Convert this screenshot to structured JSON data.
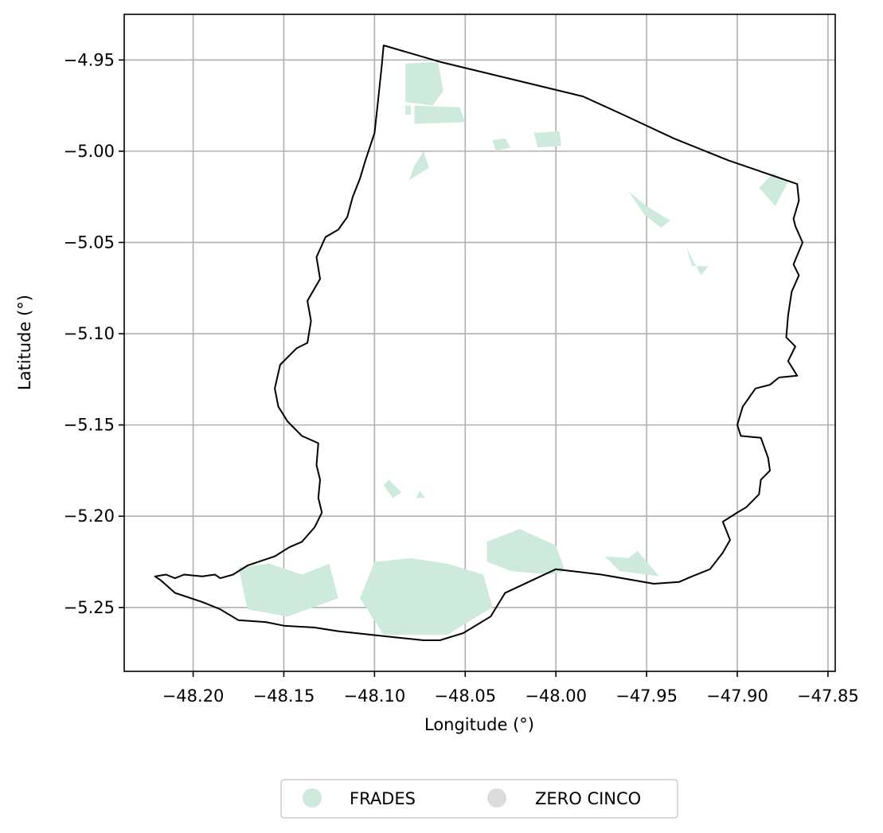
{
  "chart_data": {
    "type": "map",
    "xlabel": "Longitude (°)",
    "ylabel": "Latitude (°)",
    "xlim": [
      -48.238,
      -47.846
    ],
    "ylim": [
      -5.285,
      -4.925
    ],
    "xticks": [
      -48.2,
      -48.15,
      -48.1,
      -48.05,
      -48.0,
      -47.95,
      -47.9,
      -47.85
    ],
    "xtick_labels": [
      "−48.20",
      "−48.15",
      "−48.10",
      "−48.05",
      "−48.00",
      "−47.95",
      "−47.90",
      "−47.85"
    ],
    "yticks": [
      -4.95,
      -5.0,
      -5.05,
      -5.1,
      -5.15,
      -5.2,
      -5.25
    ],
    "ytick_labels": [
      "−4.95",
      "−5.00",
      "−5.05",
      "−5.10",
      "−5.15",
      "−5.20",
      "−5.25"
    ],
    "grid": true,
    "legend_position": "bottom-center",
    "legend": [
      {
        "label": "FRADES",
        "color": "#cdeadc"
      },
      {
        "label": "ZERO CINCO",
        "color": "#dcdcdc"
      }
    ],
    "boundary": [
      [
        -48.095,
        -4.942
      ],
      [
        -48.064,
        -4.951
      ],
      [
        -47.985,
        -4.97
      ],
      [
        -47.963,
        -4.98
      ],
      [
        -47.935,
        -4.993
      ],
      [
        -47.905,
        -5.005
      ],
      [
        -47.867,
        -5.018
      ],
      [
        -47.866,
        -5.027
      ],
      [
        -47.869,
        -5.037
      ],
      [
        -47.868,
        -5.041
      ],
      [
        -47.864,
        -5.05
      ],
      [
        -47.869,
        -5.062
      ],
      [
        -47.866,
        -5.068
      ],
      [
        -47.87,
        -5.077
      ],
      [
        -47.872,
        -5.09
      ],
      [
        -47.873,
        -5.102
      ],
      [
        -47.868,
        -5.107
      ],
      [
        -47.872,
        -5.115
      ],
      [
        -47.867,
        -5.123
      ],
      [
        -47.877,
        -5.124
      ],
      [
        -47.882,
        -5.128
      ],
      [
        -47.89,
        -5.13
      ],
      [
        -47.897,
        -5.14
      ],
      [
        -47.9,
        -5.15
      ],
      [
        -47.898,
        -5.156
      ],
      [
        -47.887,
        -5.157
      ],
      [
        -47.883,
        -5.168
      ],
      [
        -47.882,
        -5.175
      ],
      [
        -47.887,
        -5.18
      ],
      [
        -47.888,
        -5.188
      ],
      [
        -47.895,
        -5.195
      ],
      [
        -47.9,
        -5.198
      ],
      [
        -47.908,
        -5.203
      ],
      [
        -47.904,
        -5.213
      ],
      [
        -47.908,
        -5.22
      ],
      [
        -47.915,
        -5.229
      ],
      [
        -47.925,
        -5.233
      ],
      [
        -47.932,
        -5.236
      ],
      [
        -47.946,
        -5.237
      ],
      [
        -47.975,
        -5.232
      ],
      [
        -48.0,
        -5.229
      ],
      [
        -48.015,
        -5.236
      ],
      [
        -48.028,
        -5.242
      ],
      [
        -48.036,
        -5.255
      ],
      [
        -48.051,
        -5.264
      ],
      [
        -48.064,
        -5.268
      ],
      [
        -48.073,
        -5.268
      ],
      [
        -48.092,
        -5.266
      ],
      [
        -48.12,
        -5.263
      ],
      [
        -48.133,
        -5.261
      ],
      [
        -48.15,
        -5.26
      ],
      [
        -48.16,
        -5.258
      ],
      [
        -48.175,
        -5.257
      ],
      [
        -48.185,
        -5.251
      ],
      [
        -48.195,
        -5.247
      ],
      [
        -48.21,
        -5.242
      ],
      [
        -48.218,
        -5.235
      ],
      [
        -48.221,
        -5.233
      ],
      [
        -48.215,
        -5.232
      ],
      [
        -48.21,
        -5.234
      ],
      [
        -48.205,
        -5.232
      ],
      [
        -48.195,
        -5.233
      ],
      [
        -48.188,
        -5.232
      ],
      [
        -48.185,
        -5.234
      ],
      [
        -48.178,
        -5.232
      ],
      [
        -48.17,
        -5.227
      ],
      [
        -48.155,
        -5.222
      ],
      [
        -48.147,
        -5.217
      ],
      [
        -48.14,
        -5.214
      ],
      [
        -48.133,
        -5.206
      ],
      [
        -48.129,
        -5.198
      ],
      [
        -48.131,
        -5.19
      ],
      [
        -48.13,
        -5.18
      ],
      [
        -48.132,
        -5.172
      ],
      [
        -48.131,
        -5.16
      ],
      [
        -48.14,
        -5.156
      ],
      [
        -48.148,
        -5.148
      ],
      [
        -48.153,
        -5.14
      ],
      [
        -48.155,
        -5.13
      ],
      [
        -48.152,
        -5.117
      ],
      [
        -48.143,
        -5.108
      ],
      [
        -48.137,
        -5.105
      ],
      [
        -48.135,
        -5.093
      ],
      [
        -48.137,
        -5.082
      ],
      [
        -48.13,
        -5.07
      ],
      [
        -48.132,
        -5.058
      ],
      [
        -48.127,
        -5.047
      ],
      [
        -48.12,
        -5.043
      ],
      [
        -48.115,
        -5.036
      ],
      [
        -48.112,
        -5.025
      ],
      [
        -48.108,
        -5.015
      ],
      [
        -48.105,
        -5.005
      ],
      [
        -48.1,
        -4.99
      ],
      [
        -48.098,
        -4.972
      ],
      [
        -48.096,
        -4.953
      ],
      [
        -48.095,
        -4.942
      ]
    ],
    "frades_areas": [
      [
        [
          -48.083,
          -4.952
        ],
        [
          -48.065,
          -4.951
        ],
        [
          -48.062,
          -4.967
        ],
        [
          -48.068,
          -4.975
        ],
        [
          -48.083,
          -4.973
        ]
      ],
      [
        [
          -48.078,
          -4.975
        ],
        [
          -48.053,
          -4.976
        ],
        [
          -48.05,
          -4.984
        ],
        [
          -48.078,
          -4.985
        ]
      ],
      [
        [
          -48.083,
          -4.975
        ],
        [
          -48.08,
          -4.975
        ],
        [
          -48.08,
          -4.98
        ],
        [
          -48.083,
          -4.98
        ]
      ],
      [
        [
          -48.012,
          -4.99
        ],
        [
          -47.998,
          -4.989
        ],
        [
          -47.997,
          -4.997
        ],
        [
          -48.01,
          -4.998
        ]
      ],
      [
        [
          -48.028,
          -4.993
        ],
        [
          -48.025,
          -4.998
        ],
        [
          -48.033,
          -5.0
        ],
        [
          -48.035,
          -4.994
        ]
      ],
      [
        [
          -48.073,
          -5.0
        ],
        [
          -48.07,
          -5.009
        ],
        [
          -48.081,
          -5.016
        ],
        [
          -48.078,
          -5.008
        ]
      ],
      [
        [
          -47.88,
          -5.012
        ],
        [
          -47.872,
          -5.017
        ],
        [
          -47.879,
          -5.03
        ],
        [
          -47.888,
          -5.02
        ]
      ],
      [
        [
          -47.96,
          -5.022
        ],
        [
          -47.95,
          -5.03
        ],
        [
          -47.937,
          -5.038
        ],
        [
          -47.942,
          -5.042
        ],
        [
          -47.951,
          -5.035
        ]
      ],
      [
        [
          -47.928,
          -5.053
        ],
        [
          -47.925,
          -5.063
        ],
        [
          -47.916,
          -5.063
        ],
        [
          -47.92,
          -5.068
        ]
      ],
      [
        [
          -48.175,
          -5.228
        ],
        [
          -48.158,
          -5.226
        ],
        [
          -48.14,
          -5.232
        ],
        [
          -48.125,
          -5.226
        ],
        [
          -48.12,
          -5.245
        ],
        [
          -48.148,
          -5.255
        ],
        [
          -48.17,
          -5.251
        ]
      ],
      [
        [
          -48.108,
          -5.245
        ],
        [
          -48.1,
          -5.225
        ],
        [
          -48.08,
          -5.223
        ],
        [
          -48.06,
          -5.226
        ],
        [
          -48.04,
          -5.232
        ],
        [
          -48.035,
          -5.25
        ],
        [
          -48.06,
          -5.265
        ],
        [
          -48.095,
          -5.265
        ]
      ],
      [
        [
          -48.038,
          -5.214
        ],
        [
          -48.02,
          -5.207
        ],
        [
          -48.0,
          -5.216
        ],
        [
          -47.995,
          -5.23
        ],
        [
          -48.003,
          -5.232
        ],
        [
          -48.025,
          -5.23
        ],
        [
          -48.038,
          -5.225
        ]
      ],
      [
        [
          -47.973,
          -5.222
        ],
        [
          -47.965,
          -5.23
        ],
        [
          -47.943,
          -5.233
        ],
        [
          -47.955,
          -5.219
        ],
        [
          -47.96,
          -5.223
        ]
      ],
      [
        [
          -48.095,
          -5.183
        ],
        [
          -48.09,
          -5.19
        ],
        [
          -48.085,
          -5.187
        ],
        [
          -48.092,
          -5.18
        ]
      ],
      [
        [
          -48.075,
          -5.186
        ],
        [
          -48.072,
          -5.19
        ],
        [
          -48.077,
          -5.19
        ]
      ]
    ]
  }
}
